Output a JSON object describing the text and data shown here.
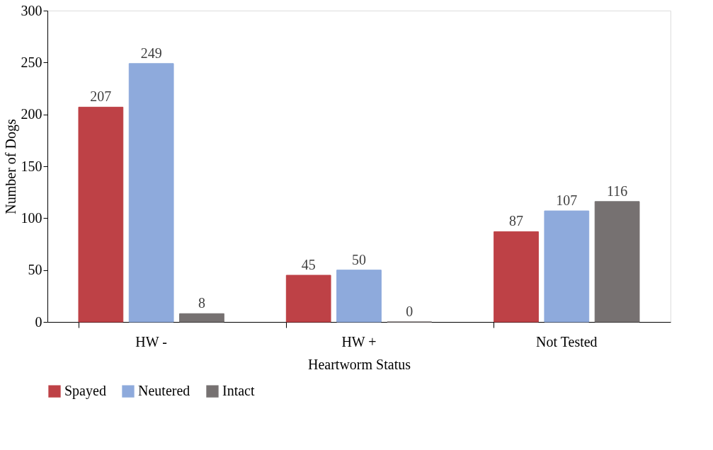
{
  "chart_data": {
    "type": "bar",
    "xlabel": "Heartworm Status",
    "ylabel": "Number of Dogs",
    "categories": [
      "HW -",
      "HW +",
      "Not Tested"
    ],
    "series": [
      {
        "name": "Spayed",
        "color": "#be4146",
        "values": [
          207,
          45,
          87
        ]
      },
      {
        "name": "Neutered",
        "color": "#8eaadc",
        "values": [
          249,
          50,
          107
        ]
      },
      {
        "name": "Intact",
        "color": "#767171",
        "values": [
          8,
          0,
          116
        ]
      }
    ],
    "ylim": [
      0,
      300
    ],
    "yticks": [
      0,
      50,
      100,
      150,
      200,
      250,
      300
    ],
    "grid": false,
    "legend": "bottom",
    "data_labels": true
  }
}
